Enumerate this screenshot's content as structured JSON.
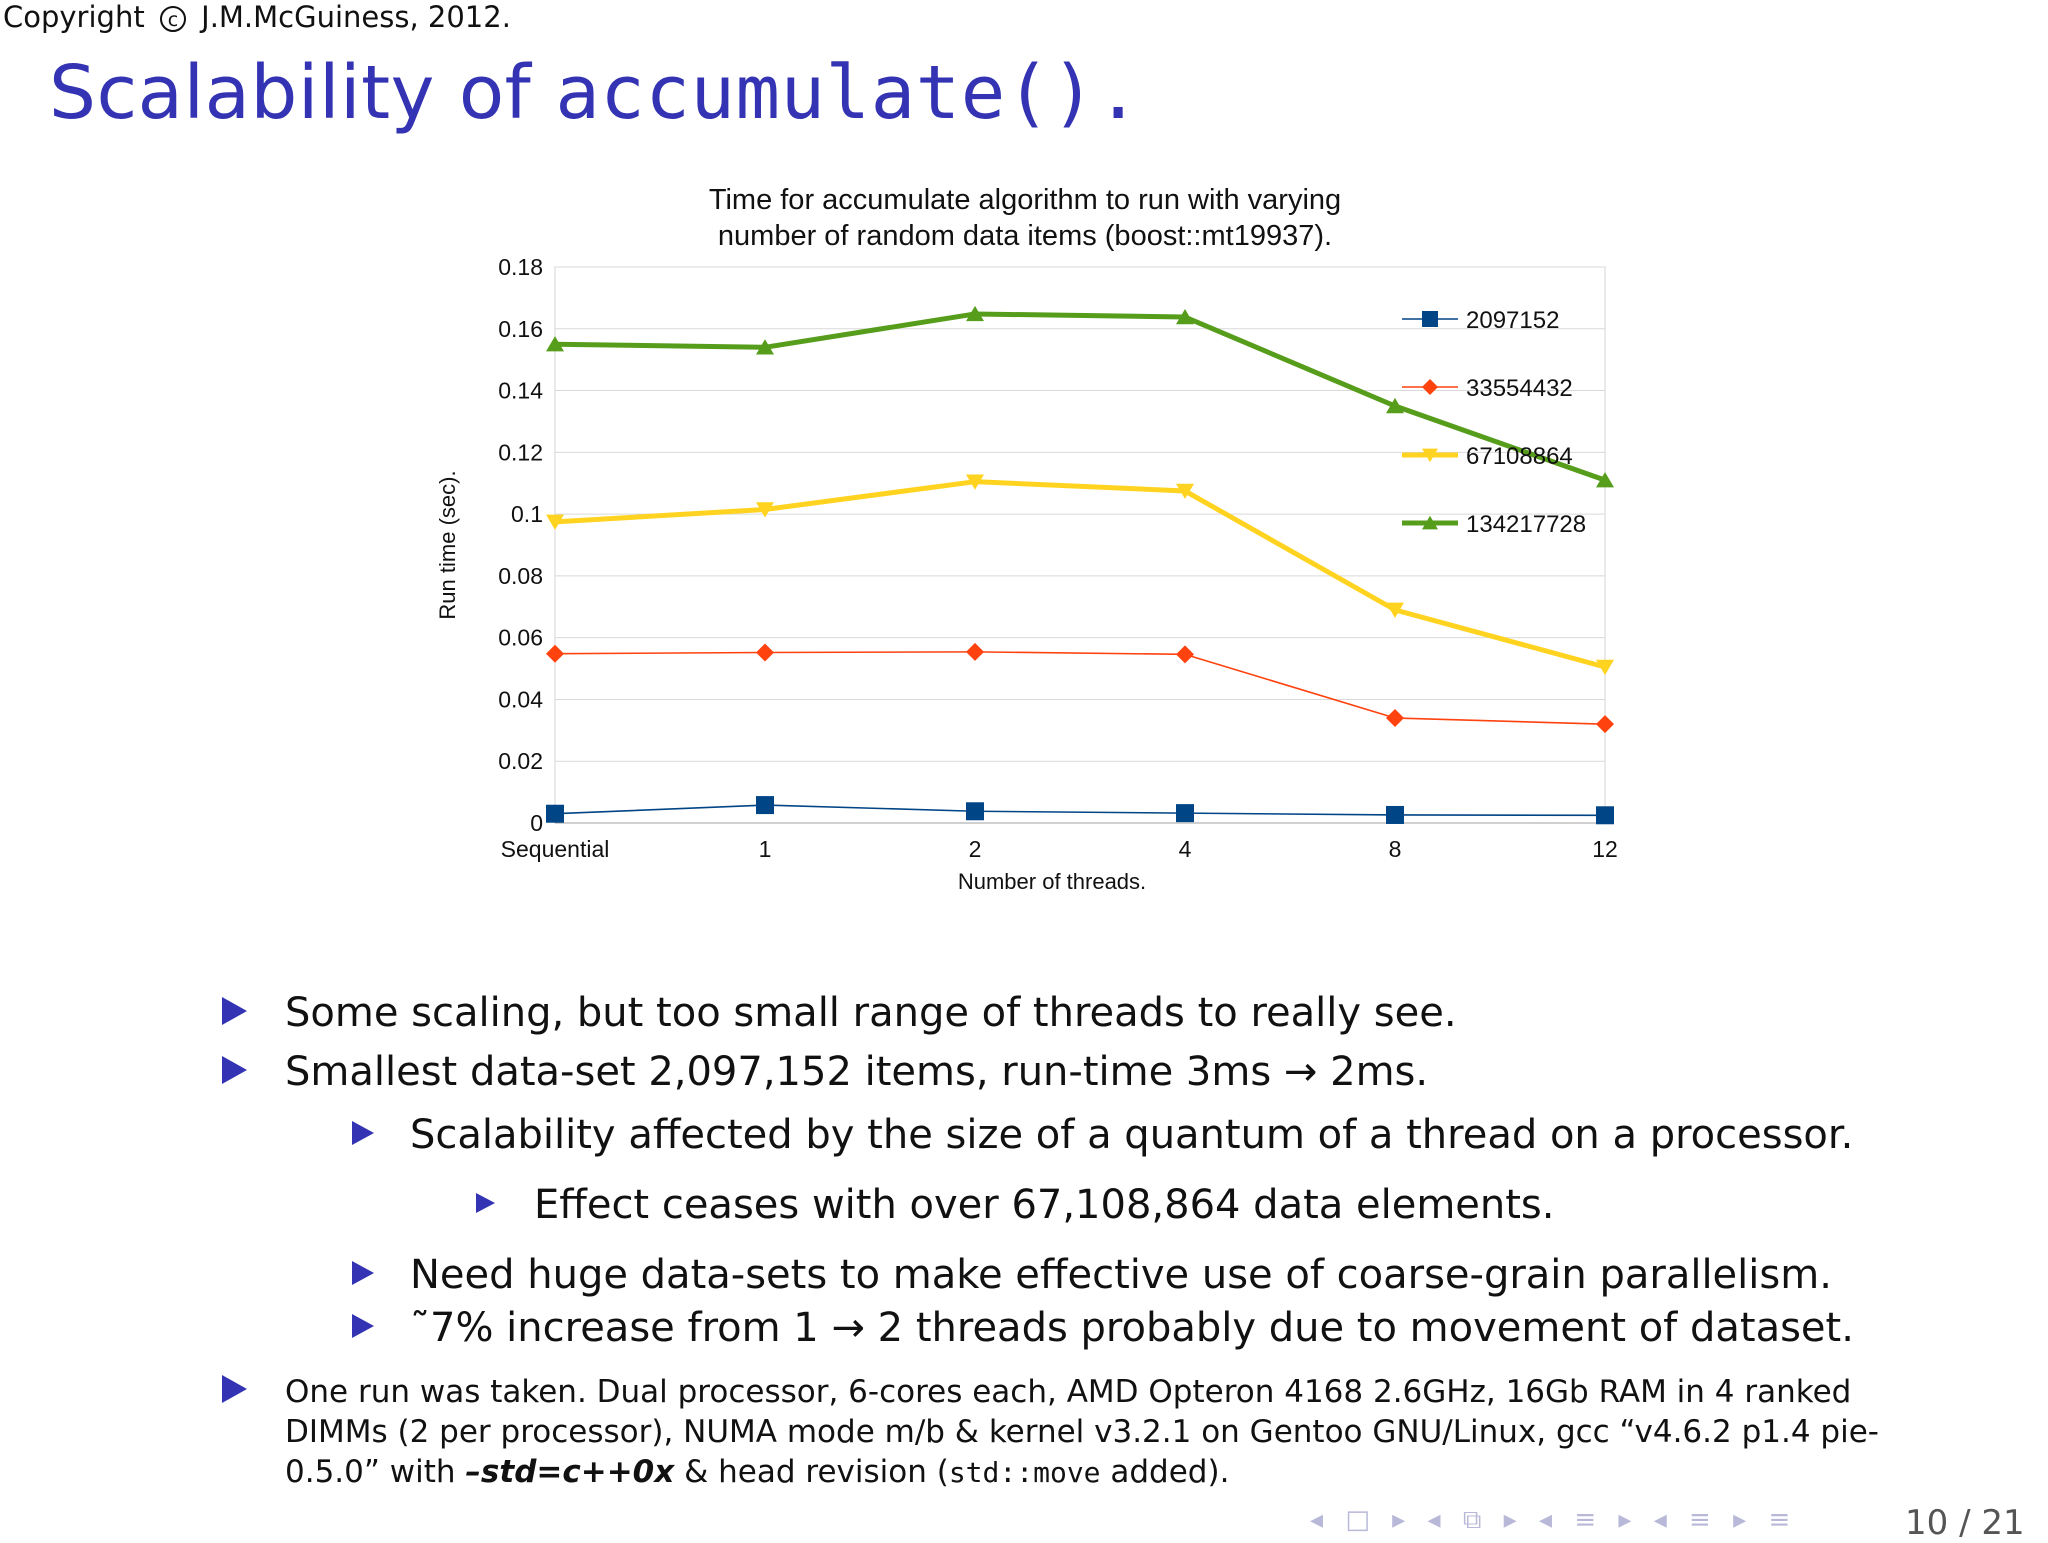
{
  "header": {
    "copyright_prefix": "Copyright",
    "copyright_symbol": "c",
    "copyright_owner": "J.M.McGuiness, 2012."
  },
  "slide": {
    "title_text": "Scalability of ",
    "title_code": "accumulate().",
    "page": "10 / 21"
  },
  "chart_data": {
    "type": "line",
    "title_line1": "Time for accumulate algorithm to run with varying",
    "title_line2": "number of random data items (boost::mt19937).",
    "xlabel": "Number of threads.",
    "ylabel": "Run time (sec).",
    "categories": [
      "Sequential",
      "1",
      "2",
      "4",
      "8",
      "12"
    ],
    "ylim": [
      0,
      0.18
    ],
    "yticks": [
      0,
      0.02,
      0.04,
      0.06,
      0.08,
      0.1,
      0.12,
      0.14,
      0.16,
      0.18
    ],
    "ytick_labels": [
      "0",
      "0.02",
      "0.04",
      "0.06",
      "0.08",
      "0.1",
      "0.12",
      "0.14",
      "0.16",
      "0.18"
    ],
    "grid": true,
    "legend_position": "top-right",
    "series": [
      {
        "name": "2097152",
        "color": "#004586",
        "marker": "square",
        "width": 1.6,
        "values": [
          0.003,
          0.0058,
          0.0038,
          0.0032,
          0.0026,
          0.0025
        ]
      },
      {
        "name": "33554432",
        "color": "#ff420e",
        "marker": "diamond",
        "width": 1.6,
        "values": [
          0.0548,
          0.0552,
          0.0554,
          0.0546,
          0.034,
          0.032
        ]
      },
      {
        "name": "67108864",
        "color": "#ffd320",
        "marker": "triangle-down",
        "width": 5,
        "values": [
          0.0975,
          0.1015,
          0.1105,
          0.1075,
          0.069,
          0.0505
        ]
      },
      {
        "name": "134217728",
        "color": "#579d1c",
        "marker": "triangle-up",
        "width": 5,
        "values": [
          0.155,
          0.154,
          0.1648,
          0.1638,
          0.135,
          0.111
        ]
      }
    ]
  },
  "bullets": {
    "b1": "Some scaling, but too small range of threads to really see.",
    "b2": "Smallest data-set 2,097,152 items, run-time 3ms → 2ms.",
    "b2_1": "Scalability affected by the size of a quantum of a thread on a processor.",
    "b2_1_1": "Effect ceases with over 67,108,864 data elements.",
    "b2_2": "Need huge data-sets to make effective use of coarse-grain parallelism.",
    "b2_3": "˜7% increase from 1 → 2 threads probably due to movement of dataset.",
    "footnote_a": "One run was taken. Dual processor, 6-cores each, AMD Opteron 4168 2.6GHz, 16Gb RAM in 4 ranked DIMMs (2 per processor), NUMA mode m/b & kernel v3.2.1 on Gentoo GNU/Linux, gcc “v4.6.2 p1.4 pie-0.5.0” with ",
    "footnote_flag": "–std=c++0x",
    "footnote_b": " & head revision (",
    "footnote_code": "std::move",
    "footnote_c": " added)."
  },
  "nav": {
    "icons": [
      "◂",
      "□",
      "▸",
      "◂",
      "⧉",
      "▸",
      "◂",
      "≡",
      "▸",
      "◂",
      "≡",
      "▸",
      "≡"
    ]
  }
}
